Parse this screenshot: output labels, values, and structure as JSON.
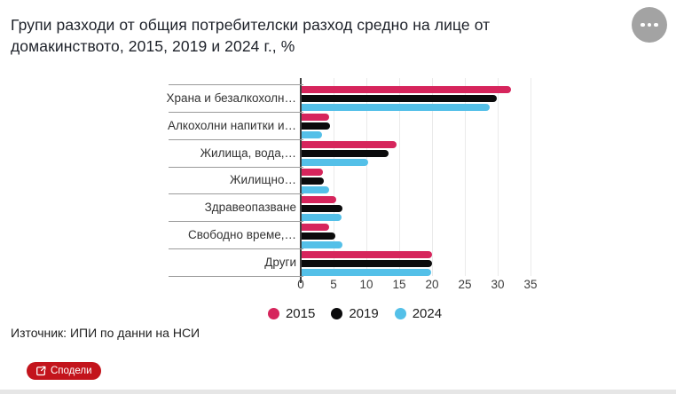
{
  "page": {
    "title": "Групи разходи от общия потребителски разход средно на лице от домакинството, 2015, 2019 и 2024 г., %",
    "source": "Източник: ИПИ по данни на НСИ",
    "share_label": "Сподели",
    "menu_icon": "ellipsis-icon",
    "share_icon": "share-export-icon"
  },
  "colors": {
    "series_2015": "#d6255c",
    "series_2019": "#0b0b0c",
    "series_2024": "#54c0e8",
    "share_button_red": "#c3141c",
    "menu_button_gray": "#a3a3a3"
  },
  "chart_data": {
    "type": "bar",
    "orientation": "horizontal",
    "title": "Групи разходи от общия потребителски разход средно на лице от домакинството, 2015, 2019 и 2024 г., %",
    "categories": [
      "Храна и безалкохолн…",
      "Алкохолни напитки и…",
      "Жилища, вода,…",
      "Жилищно…",
      "Здравеопазване",
      "Свободно време,…",
      "Други"
    ],
    "series": [
      {
        "name": "2015",
        "color": "#d6255c",
        "values": [
          31.9,
          4.2,
          14.4,
          3.2,
          5.3,
          4.2,
          19.8
        ]
      },
      {
        "name": "2019",
        "color": "#0b0b0c",
        "values": [
          29.7,
          4.3,
          13.3,
          3.4,
          6.2,
          5.2,
          19.8
        ]
      },
      {
        "name": "2024",
        "color": "#54c0e8",
        "values": [
          28.7,
          3.1,
          10.1,
          4.2,
          6.1,
          6.2,
          19.7
        ]
      }
    ],
    "x_ticks": [
      0,
      5,
      10,
      15,
      20,
      25,
      30,
      35
    ],
    "xlim": [
      0,
      36.5
    ],
    "xlabel": "",
    "ylabel": "",
    "grid": "vertical",
    "legend_entries": [
      "2015",
      "2019",
      "2024"
    ],
    "legend_position": "bottom-center"
  }
}
